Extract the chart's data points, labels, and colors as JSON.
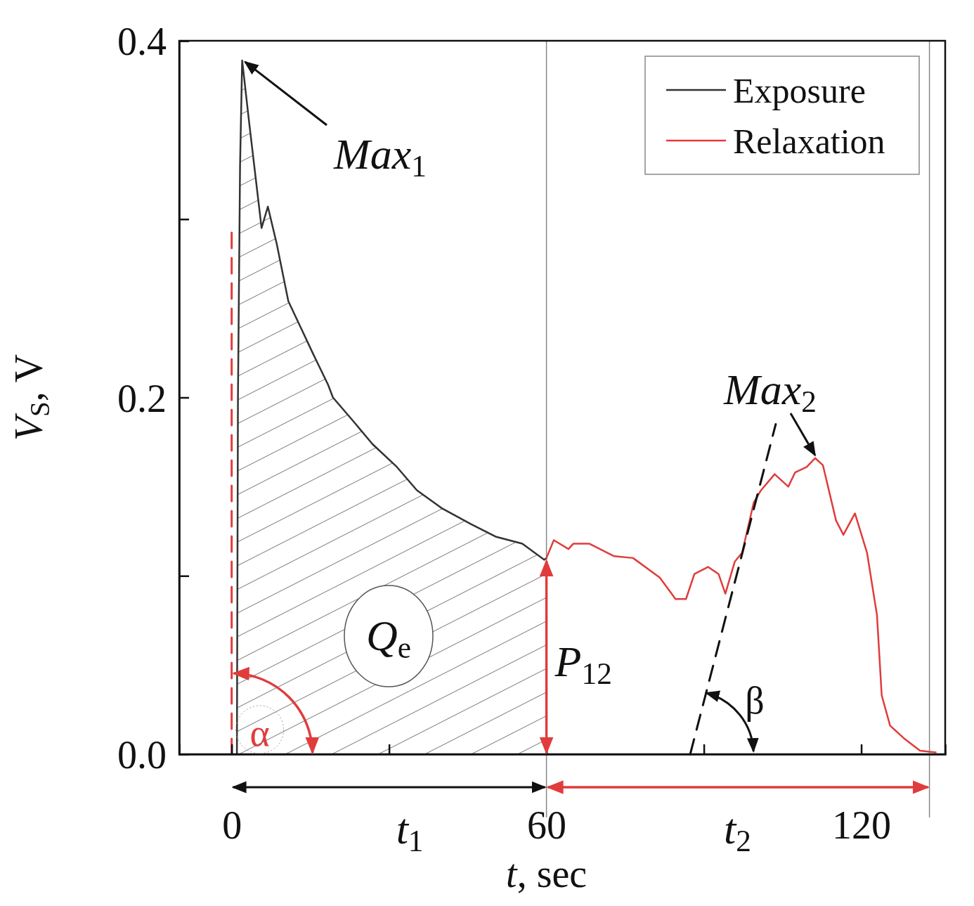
{
  "chart_data": {
    "type": "line",
    "xlabel": "t, sec",
    "ylabel": "V$_{S}$, V",
    "xlim": [
      -10,
      136
    ],
    "ylim": [
      0,
      0.4
    ],
    "xticks": [
      0,
      {
        "value": 30,
        "label": null
      },
      60,
      {
        "value": 90,
        "label": null
      },
      120
    ],
    "yticks": [
      {
        "value": 0,
        "label": "0.0"
      },
      {
        "value": 0.1,
        "label": null
      },
      {
        "value": 0.2,
        "label": "0.2"
      },
      {
        "value": 0.3,
        "label": null
      },
      {
        "value": 0.4,
        "label": "0.4"
      }
    ],
    "legend": "top right",
    "grid": false,
    "series": [
      {
        "name": "Exposure",
        "type": "area",
        "color": "#333333",
        "x": [
          1.0,
          1.2,
          1.6,
          2.0,
          3.3,
          5.7,
          6.9,
          8.6,
          10.8,
          13.2,
          15.6,
          18.4,
          19.3,
          23.1,
          26.8,
          31.5,
          35.3,
          40.0,
          45.6,
          50.3,
          55.4,
          59.6,
          60.0
        ],
        "values": [
          0,
          0.2,
          0.33,
          0.389,
          0.355,
          0.295,
          0.307,
          0.286,
          0.254,
          0.239,
          0.224,
          0.207,
          0.2,
          0.187,
          0.174,
          0.161,
          0.148,
          0.138,
          0.129,
          0.122,
          0.118,
          0.109,
          0.11
        ]
      },
      {
        "name": "Relaxation",
        "color": "#e03c3c",
        "x": [
          60.0,
          61.4,
          64.2,
          65.1,
          68.2,
          72.9,
          76.5,
          81.6,
          84.6,
          86.6,
          88.2,
          90.8,
          92.8,
          94.1,
          95.9,
          97.3,
          99.5,
          100.9,
          103.5,
          106.1,
          107.4,
          109.6,
          111.2,
          112.7,
          115.2,
          116.6,
          118.8,
          121.1,
          123.0,
          123.9,
          125.5,
          128.1,
          131.2,
          134.2
        ],
        "values": [
          0.11,
          0.12,
          0.115,
          0.118,
          0.118,
          0.111,
          0.11,
          0.099,
          0.087,
          0.087,
          0.101,
          0.105,
          0.101,
          0.09,
          0.108,
          0.113,
          0.141,
          0.148,
          0.157,
          0.15,
          0.158,
          0.161,
          0.166,
          0.162,
          0.131,
          0.123,
          0.135,
          0.113,
          0.078,
          0.033,
          0.016,
          0.009,
          0.002,
          0.001
        ]
      },
      {
        "color": "#e03c3c",
        "line_style": "dashed",
        "x": [
          0,
          0
        ],
        "values": [
          0,
          0.293
        ]
      },
      {
        "color": "#111111",
        "line_style": "dashed",
        "x": [
          87.4,
          103.7
        ],
        "values": [
          0,
          0.185
        ]
      }
    ],
    "ref_lines": [
      {
        "axis": "x",
        "value": 60,
        "color": "#888888"
      },
      {
        "axis": "x",
        "value": 133,
        "color": "#888888"
      }
    ],
    "annotations": [
      {
        "text": "Max$_{1}$",
        "x": 2,
        "y": 0.389
      },
      {
        "text": "Max$_{2}$",
        "x": 111.2,
        "y": 0.166
      },
      "Q$_{e}$",
      {
        "text": "P$_{12}$",
        "x": 60,
        "y": 0.11
      },
      "α",
      "β",
      "t$_{1}$",
      "t$_{2}$"
    ]
  }
}
